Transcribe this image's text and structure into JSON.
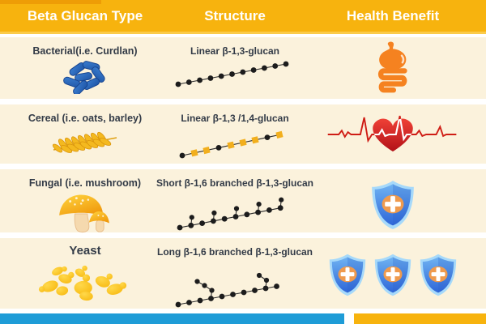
{
  "header": {
    "columns": [
      "Beta Glucan Type",
      "Structure",
      "Health Benefit"
    ]
  },
  "rows": [
    {
      "type_label": "Bacterial(i.e. Curdlan)",
      "type_icon": "bacteria-icon",
      "structure_label": "Linear β-1,3-glucan",
      "benefit_icon": "digestive-tract-icon",
      "benefit_shield_count": 0,
      "chain": {
        "start": [
          10,
          32
        ],
        "step": [
          13.3,
          -2.5
        ],
        "units": [
          "c",
          "c",
          "c",
          "c",
          "c",
          "c",
          "c",
          "c",
          "c",
          "c",
          "c"
        ],
        "branches": []
      }
    },
    {
      "type_label": "Cereal (i.e. oats, barley)",
      "type_icon": "wheat-icon",
      "structure_label": "Linear β-1,3 /1,4-glucan",
      "benefit_icon": "heart-ekg-icon",
      "benefit_shield_count": 0,
      "chain": {
        "start": [
          10,
          37
        ],
        "step": [
          15,
          -3.2
        ],
        "units": [
          "c",
          "s",
          "s",
          "c",
          "s",
          "s",
          "s",
          "c",
          "s"
        ],
        "branches": []
      }
    },
    {
      "type_label": "Fungal (i.e. mushroom)",
      "type_icon": "mushroom-icon",
      "structure_label": "Short β-1,6 branched β-1,3-glucan",
      "benefit_icon": "shield-cross-icon",
      "benefit_shield_count": 1,
      "chain": {
        "start": [
          12,
          46
        ],
        "step": [
          13.8,
          -2.7
        ],
        "units": [
          "c",
          "c",
          "c",
          "c",
          "c",
          "c",
          "c",
          "c",
          "c",
          "c"
        ],
        "branches": [
          {
            "at": 1,
            "len": 1
          },
          {
            "at": 3,
            "len": 1
          },
          {
            "at": 5,
            "len": 1
          },
          {
            "at": 7,
            "len": 1
          },
          {
            "at": 9,
            "len": 1
          }
        ]
      }
    },
    {
      "type_label": "Yeast",
      "type_icon": "yeast-icon",
      "structure_label": "Long β-1,6 branched β-1,3-glucan",
      "benefit_icon": "shield-cross-icon",
      "benefit_shield_count": 3,
      "chain": {
        "start": [
          12,
          56
        ],
        "step": [
          13.5,
          -2.5
        ],
        "units": [
          "c",
          "c",
          "c",
          "c",
          "c",
          "c",
          "c",
          "c",
          "c",
          "c"
        ],
        "branches": [
          {
            "at": 3,
            "len": 3
          },
          {
            "at": 8,
            "len": 2
          }
        ]
      }
    }
  ],
  "colors": {
    "header_bg": "#f7b30e",
    "row_bg": "#fbf2dc",
    "chain_dot": "#1c1c1c",
    "chain_square": "#f2af1d",
    "footer_left_bar": "#1e9cd7",
    "footer_right_bar": "#f7b30e"
  }
}
